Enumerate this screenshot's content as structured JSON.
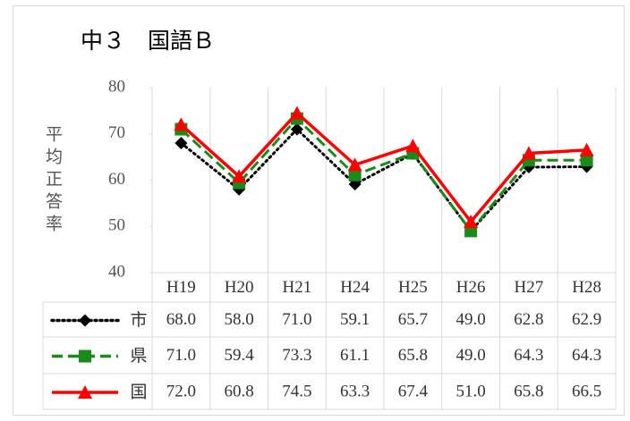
{
  "chart_data": {
    "type": "line",
    "title": "中３　国語Ｂ",
    "y_label": "平均正答率",
    "categories": [
      "H19",
      "H20",
      "H21",
      "H24",
      "H25",
      "H26",
      "H27",
      "H28"
    ],
    "ylim": [
      40,
      80
    ],
    "yticks": [
      40,
      50,
      60,
      70,
      80
    ],
    "series": [
      {
        "name": "市",
        "color": "#000000",
        "dash": "dotted",
        "marker": "diamond",
        "values": [
          68.0,
          58.0,
          71.0,
          59.1,
          65.7,
          49.0,
          62.8,
          62.9
        ],
        "value_labels": [
          "68.0",
          "58.0",
          "71.0",
          "59.1",
          "65.7",
          "49.0",
          "62.8",
          "62.9"
        ]
      },
      {
        "name": "県",
        "color": "#1a8a1a",
        "dash": "dashed",
        "marker": "square",
        "values": [
          71.0,
          59.4,
          73.3,
          61.1,
          65.8,
          49.0,
          64.3,
          64.3
        ],
        "value_labels": [
          "71.0",
          "59.4",
          "73.3",
          "61.1",
          "65.8",
          "49.0",
          "64.3",
          "64.3"
        ]
      },
      {
        "name": "国",
        "color": "#ff0000",
        "dash": "solid",
        "marker": "triangle",
        "values": [
          72.0,
          60.8,
          74.5,
          63.3,
          67.4,
          51.0,
          65.8,
          66.5
        ],
        "value_labels": [
          "72.0",
          "60.8",
          "74.5",
          "63.3",
          "67.4",
          "51.0",
          "65.8",
          "66.5"
        ]
      }
    ]
  }
}
